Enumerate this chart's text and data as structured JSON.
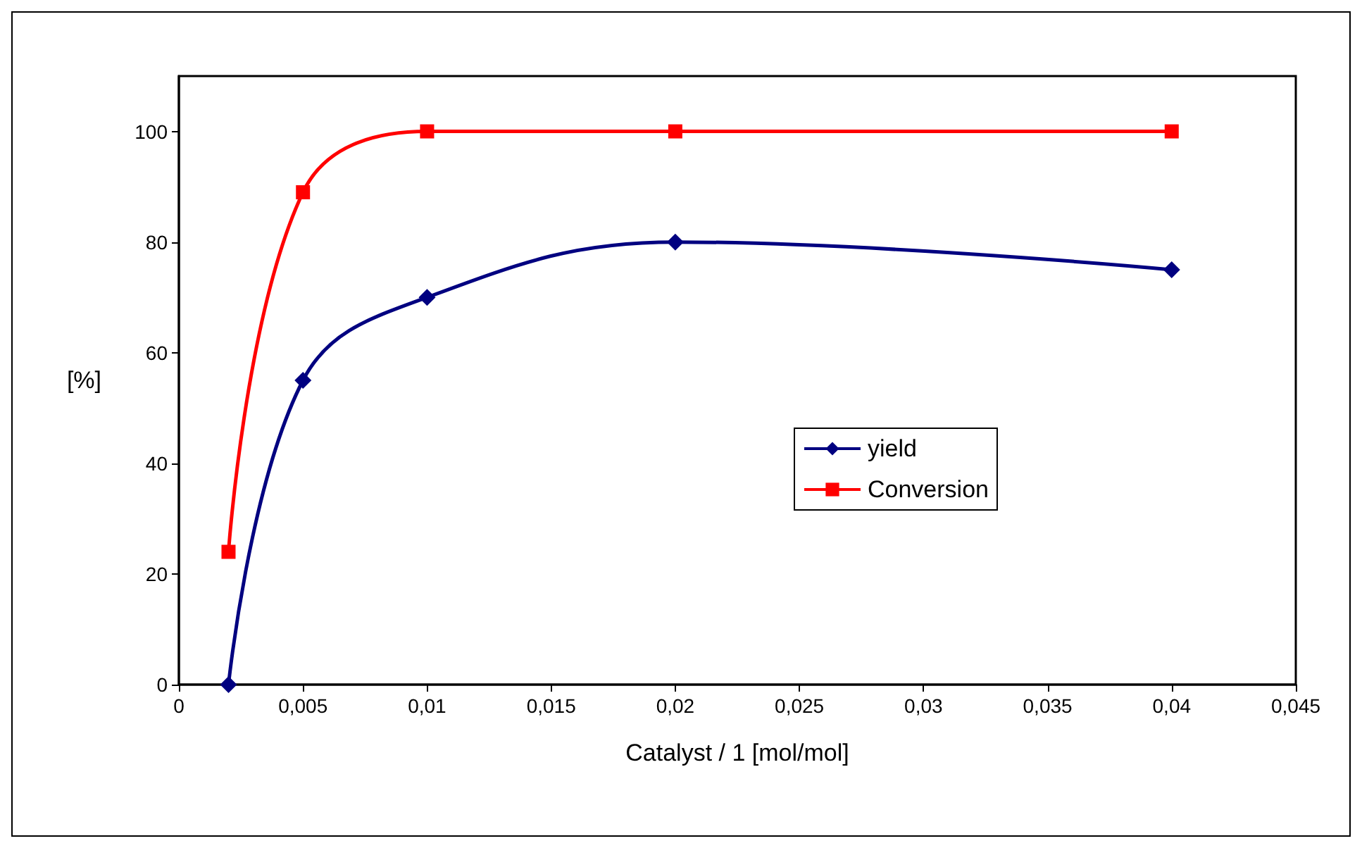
{
  "chart_data": {
    "type": "line",
    "xlabel": "Catalyst / 1 [mol/mol]",
    "ylabel": "[%]",
    "x": [
      0.002,
      0.005,
      0.01,
      0.02,
      0.04
    ],
    "series": [
      {
        "name": "yield",
        "color": "#000080",
        "marker": "diamond",
        "values": [
          0,
          55,
          70,
          80,
          75
        ]
      },
      {
        "name": "Conversion",
        "color": "#ff0000",
        "marker": "square",
        "values": [
          24,
          89,
          100,
          100,
          100
        ]
      }
    ],
    "xlim": [
      0,
      0.045
    ],
    "xticks": [
      0,
      {
        "value": 0.005,
        "label": "0,005"
      },
      {
        "value": 0.01,
        "label": "0,01"
      },
      {
        "value": 0.015,
        "label": "0,015"
      },
      {
        "value": 0.02,
        "label": "0,02"
      },
      {
        "value": 0.025,
        "label": "0,025"
      },
      {
        "value": 0.03,
        "label": "0,03"
      },
      {
        "value": 0.035,
        "label": "0,035"
      },
      {
        "value": 0.04,
        "label": "0,04"
      },
      {
        "value": 0.045,
        "label": "0,045"
      }
    ],
    "ylim": [
      0,
      110
    ],
    "yticks": [
      0,
      20,
      40,
      60,
      80,
      100
    ],
    "legend": "center",
    "grid": false
  }
}
